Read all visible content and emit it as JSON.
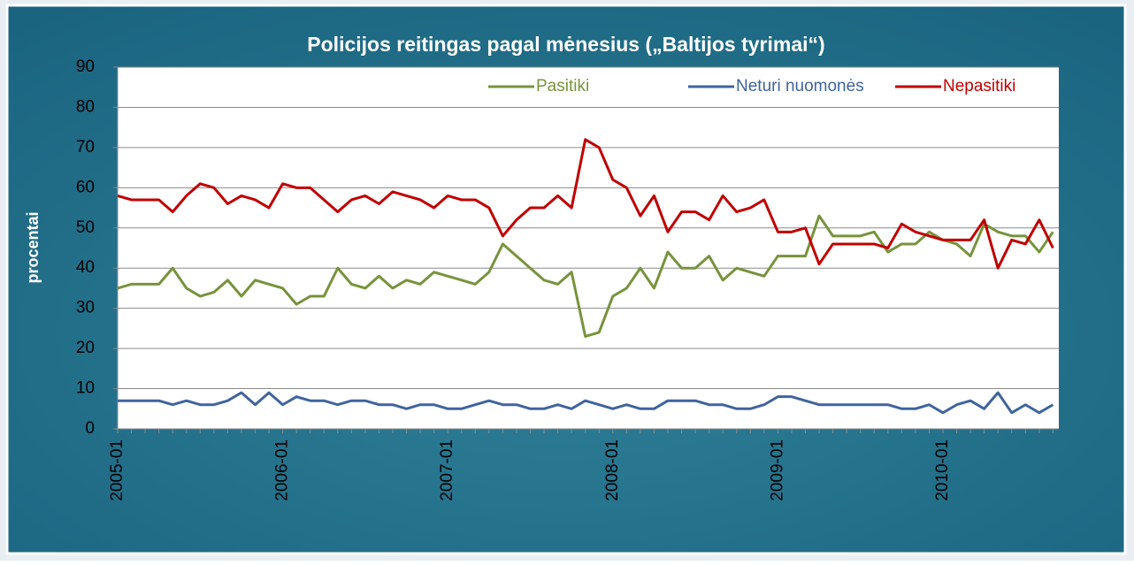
{
  "chart_data": {
    "type": "line",
    "title": "Policijos reitingas pagal mėnesius („Baltijos tyrimai“)",
    "y_label": "procentai",
    "categories": [
      "2005-01",
      null,
      null,
      null,
      null,
      null,
      null,
      null,
      null,
      null,
      null,
      null,
      "2006-01",
      null,
      null,
      null,
      null,
      null,
      null,
      null,
      null,
      null,
      null,
      null,
      "2007-01",
      null,
      null,
      null,
      null,
      null,
      null,
      null,
      null,
      null,
      null,
      null,
      "2008-01",
      null,
      null,
      null,
      null,
      null,
      null,
      null,
      null,
      null,
      null,
      null,
      "2009-01",
      null,
      null,
      null,
      null,
      null,
      null,
      null,
      null,
      null,
      null,
      null,
      "2010-01",
      null,
      null,
      null,
      null,
      null,
      null,
      null,
      null
    ],
    "series": [
      {
        "name": "Pasitiki",
        "color": "#77933c",
        "values": [
          35,
          36,
          36,
          36,
          40,
          35,
          33,
          34,
          37,
          33,
          37,
          36,
          35,
          31,
          33,
          33,
          40,
          36,
          35,
          38,
          35,
          37,
          36,
          39,
          38,
          37,
          36,
          39,
          46,
          43,
          40,
          37,
          36,
          39,
          23,
          24,
          33,
          35,
          40,
          35,
          44,
          40,
          40,
          43,
          37,
          40,
          39,
          38,
          43,
          43,
          43,
          53,
          48,
          48,
          48,
          49,
          44,
          46,
          46,
          49,
          47,
          46,
          43,
          51,
          49,
          48,
          48,
          44,
          49
        ]
      },
      {
        "name": "Neturi nuomonės",
        "color": "#3f649e",
        "values": [
          7,
          7,
          7,
          7,
          6,
          7,
          6,
          6,
          7,
          9,
          6,
          9,
          6,
          8,
          7,
          7,
          6,
          7,
          7,
          6,
          6,
          5,
          6,
          6,
          5,
          5,
          6,
          7,
          6,
          6,
          5,
          5,
          6,
          5,
          7,
          6,
          5,
          6,
          5,
          5,
          7,
          7,
          7,
          6,
          6,
          5,
          5,
          6,
          8,
          8,
          7,
          6,
          6,
          6,
          6,
          6,
          6,
          5,
          5,
          6,
          4,
          6,
          7,
          5,
          9,
          4,
          6,
          4,
          6
        ]
      },
      {
        "name": "Nepasitiki",
        "color": "#c00000",
        "values": [
          58,
          57,
          57,
          57,
          54,
          58,
          61,
          60,
          56,
          58,
          57,
          55,
          61,
          60,
          60,
          57,
          54,
          57,
          58,
          56,
          59,
          58,
          57,
          55,
          58,
          57,
          57,
          55,
          48,
          52,
          55,
          55,
          58,
          55,
          72,
          70,
          62,
          60,
          53,
          58,
          49,
          54,
          54,
          52,
          58,
          54,
          55,
          57,
          49,
          49,
          50,
          41,
          46,
          46,
          46,
          46,
          45,
          51,
          49,
          48,
          47,
          47,
          47,
          52,
          40,
          47,
          46,
          52,
          45
        ]
      }
    ],
    "ylim": [
      0,
      90
    ],
    "yticks": [
      0,
      10,
      20,
      30,
      40,
      50,
      60,
      70,
      80,
      90
    ],
    "grid": true,
    "legend": "top-right"
  }
}
